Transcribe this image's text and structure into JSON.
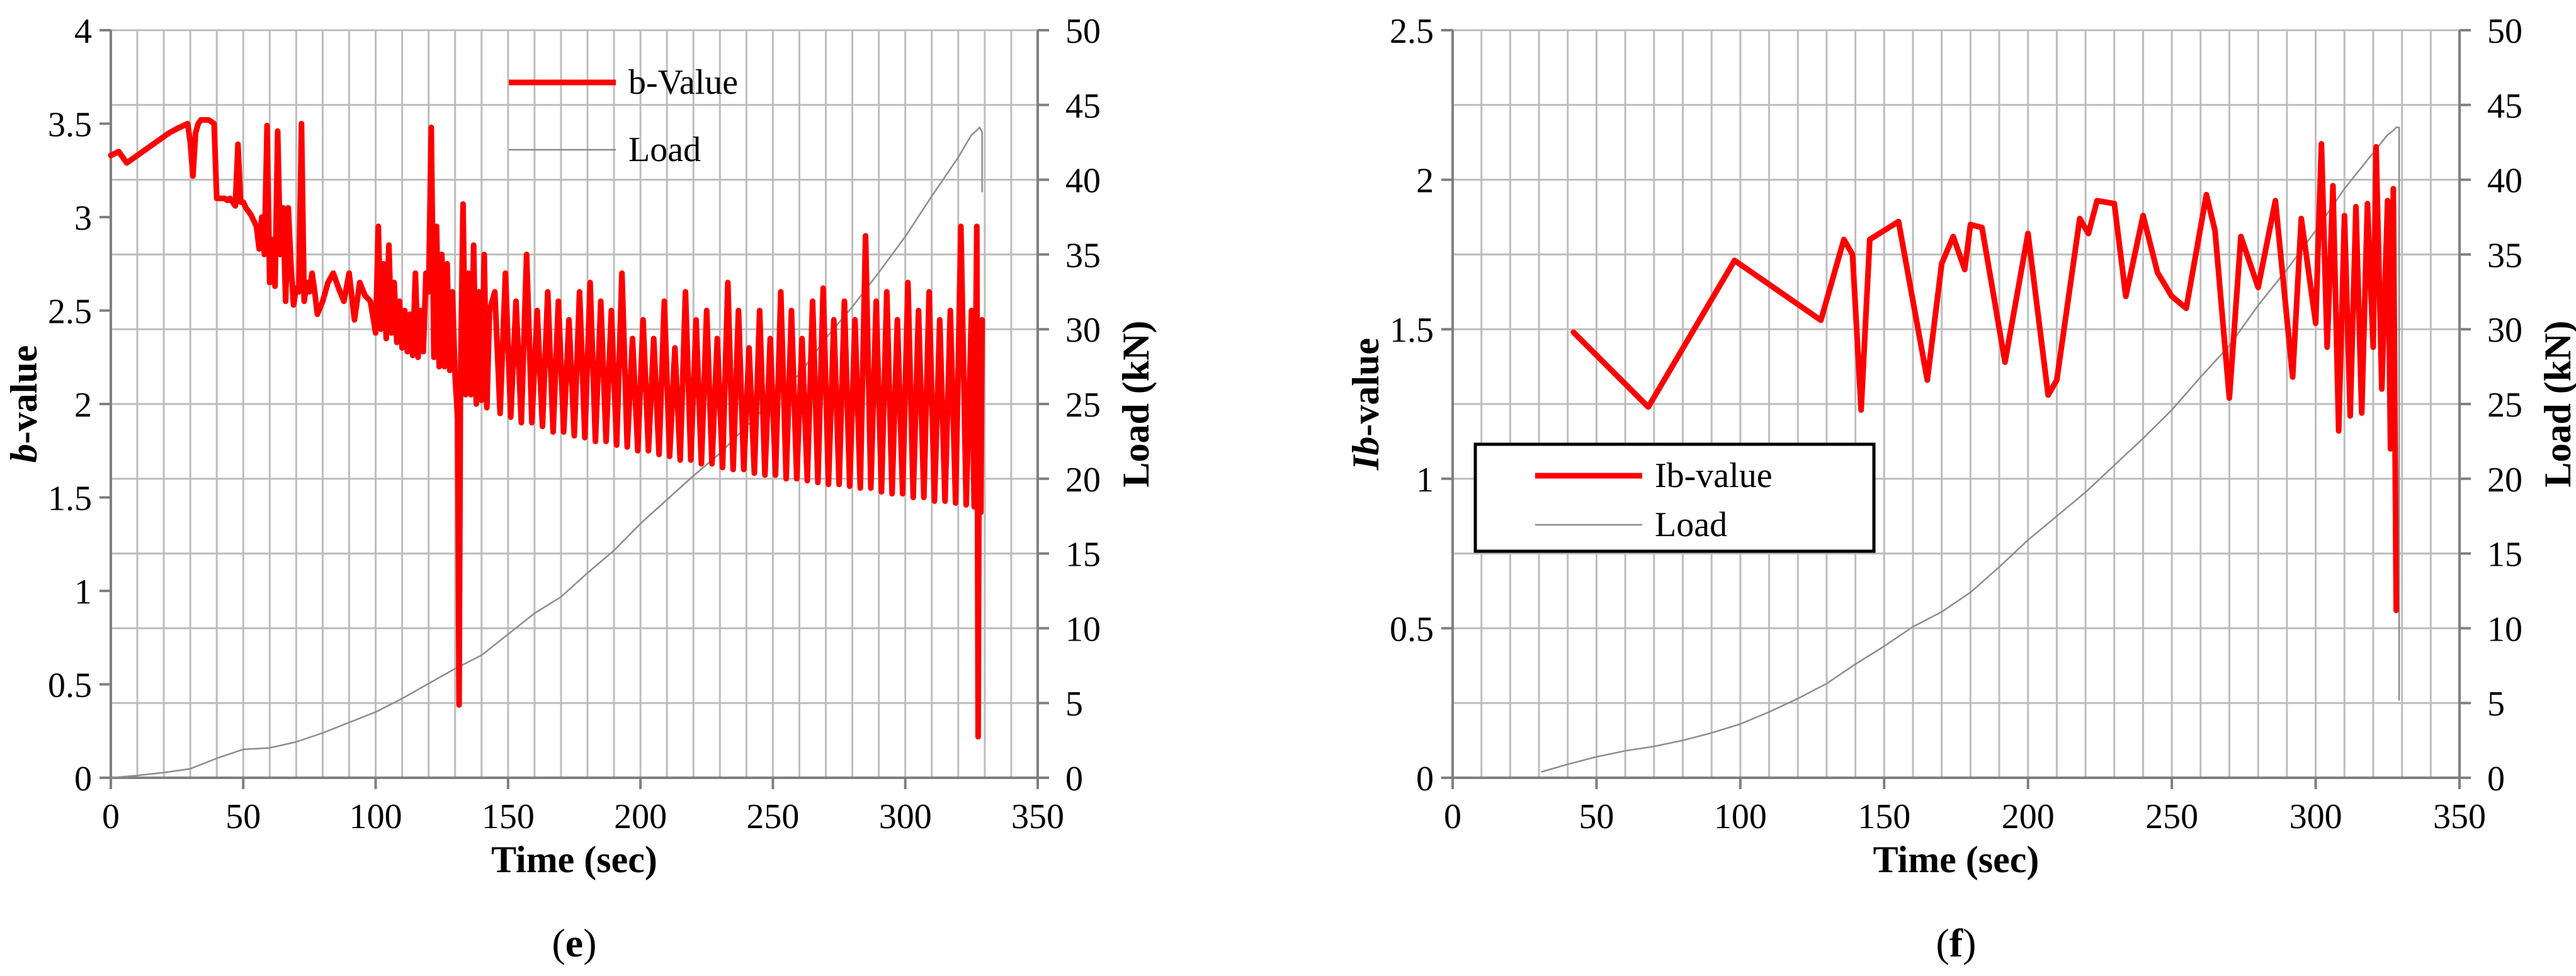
{
  "figure": {
    "colors": {
      "primary_series": "#ff0000",
      "load_series": "#8c8c8c",
      "grid": "#bdbdbd",
      "axis": "#808080"
    }
  },
  "chart_data": [
    {
      "type": "line",
      "caption_letter": "e",
      "xlabel": "Time (sec)",
      "ylabel_italic": "b",
      "ylabel_rest": "-value",
      "y2label": "Load (kN)",
      "xlim": [
        0,
        350
      ],
      "ylim": [
        0,
        4
      ],
      "y2lim": [
        0,
        50
      ],
      "xticks": [
        0,
        50,
        100,
        150,
        200,
        250,
        300,
        350
      ],
      "yticks": [
        "0",
        "0.5",
        "1",
        "1.5",
        "2",
        "2.5",
        "3",
        "3.5",
        "4"
      ],
      "y2ticks": [
        0,
        5,
        10,
        15,
        20,
        25,
        30,
        35,
        40,
        45,
        50
      ],
      "grid": true,
      "legend": {
        "position": "top-center",
        "boxed": false
      },
      "series": [
        {
          "name": "b-Value",
          "axis": "left",
          "color": "#ff0000",
          "style": "thick",
          "x": [
            0,
            3,
            6,
            10,
            14,
            18,
            22,
            26,
            29,
            30,
            31,
            32,
            33,
            34,
            35,
            37,
            39,
            40,
            41,
            42,
            43,
            44,
            45,
            47,
            48,
            49,
            50,
            51,
            53,
            55,
            56,
            57,
            58,
            59,
            60,
            61,
            62,
            63,
            64,
            65,
            66,
            67,
            68,
            69,
            70,
            71,
            72,
            73,
            74,
            75,
            76,
            77,
            78,
            80,
            82,
            84,
            86,
            88,
            90,
            92,
            94,
            96,
            98,
            100,
            101,
            102,
            103,
            104,
            105,
            106,
            107,
            108,
            109,
            110,
            111,
            112,
            113,
            114,
            115,
            116,
            117,
            118,
            119,
            120,
            121,
            122,
            123,
            124,
            125,
            126,
            127,
            128,
            129,
            130,
            131,
            131.5,
            132,
            133,
            134,
            135,
            136,
            137,
            138,
            139,
            140,
            141,
            142,
            143,
            145,
            147,
            149,
            151,
            153,
            155,
            157,
            159,
            161,
            163,
            165,
            167,
            169,
            171,
            173,
            175,
            177,
            179,
            181,
            183,
            185,
            187,
            189,
            191,
            193,
            195,
            197,
            199,
            201,
            203,
            205,
            207,
            209,
            211,
            213,
            215,
            217,
            219,
            221,
            223,
            225,
            227,
            229,
            231,
            233,
            235,
            237,
            239,
            241,
            243,
            245,
            247,
            249,
            251,
            253,
            255,
            257,
            259,
            261,
            263,
            265,
            267,
            269,
            271,
            273,
            275,
            277,
            279,
            281,
            283,
            285,
            287,
            289,
            291,
            293,
            295,
            297,
            299,
            301,
            303,
            305,
            307,
            309,
            311,
            313,
            315,
            317,
            319,
            321,
            323,
            325,
            326,
            327,
            327.5,
            328,
            328.5,
            329
          ],
          "y": [
            3.33,
            3.35,
            3.29,
            3.33,
            3.37,
            3.41,
            3.45,
            3.48,
            3.5,
            3.4,
            3.22,
            3.45,
            3.5,
            3.52,
            3.52,
            3.52,
            3.5,
            3.1,
            3.1,
            3.1,
            3.1,
            3.09,
            3.1,
            3.06,
            3.39,
            3.08,
            3.08,
            3.05,
            3.01,
            2.95,
            2.83,
            3.0,
            2.8,
            3.49,
            2.65,
            2.88,
            2.63,
            3.46,
            2.8,
            3.05,
            2.55,
            3.05,
            2.75,
            2.53,
            2.62,
            2.6,
            3.5,
            2.55,
            2.65,
            2.6,
            2.7,
            2.6,
            2.48,
            2.55,
            2.65,
            2.7,
            2.62,
            2.55,
            2.7,
            2.45,
            2.65,
            2.58,
            2.55,
            2.38,
            2.95,
            2.4,
            2.75,
            2.35,
            2.85,
            2.38,
            2.65,
            2.33,
            2.55,
            2.3,
            2.5,
            2.28,
            2.48,
            2.26,
            2.7,
            2.25,
            2.5,
            2.28,
            2.7,
            2.6,
            3.48,
            2.25,
            2.95,
            2.2,
            2.8,
            2.2,
            2.75,
            2.18,
            2.6,
            2.15,
            1.92,
            0.39,
            2.1,
            3.07,
            2.05,
            2.7,
            2.05,
            2.85,
            2.0,
            2.6,
            2.02,
            2.8,
            1.98,
            2.5,
            2.6,
            1.95,
            2.7,
            1.93,
            2.55,
            1.9,
            2.8,
            1.9,
            2.5,
            1.88,
            2.6,
            1.85,
            2.55,
            1.85,
            2.45,
            1.83,
            2.6,
            1.82,
            2.65,
            1.8,
            2.55,
            1.8,
            2.5,
            1.78,
            2.7,
            1.77,
            2.35,
            1.75,
            2.45,
            1.75,
            2.35,
            1.73,
            2.55,
            1.72,
            2.3,
            1.7,
            2.6,
            1.7,
            2.45,
            1.68,
            2.5,
            1.68,
            2.35,
            1.66,
            2.65,
            1.65,
            2.5,
            1.65,
            2.3,
            1.63,
            2.5,
            1.62,
            2.35,
            1.62,
            2.6,
            1.6,
            2.5,
            1.6,
            2.35,
            1.59,
            2.55,
            1.58,
            2.62,
            1.57,
            2.45,
            1.57,
            2.55,
            1.56,
            2.45,
            1.55,
            2.9,
            1.55,
            2.55,
            1.53,
            2.6,
            1.52,
            2.45,
            1.52,
            2.65,
            1.5,
            2.5,
            1.5,
            2.6,
            1.48,
            2.45,
            1.48,
            2.5,
            1.47,
            2.95,
            1.46,
            2.5,
            1.45,
            2.95,
            0.22,
            2.4,
            1.42,
            2.45
          ]
        },
        {
          "name": "Load",
          "axis": "right",
          "color": "#8c8c8c",
          "style": "thin",
          "x": [
            0,
            10,
            20,
            30,
            40,
            50,
            60,
            70,
            80,
            90,
            100,
            110,
            120,
            130,
            140,
            150,
            160,
            170,
            180,
            190,
            200,
            210,
            220,
            230,
            240,
            250,
            260,
            270,
            280,
            290,
            300,
            310,
            320,
            325,
            327,
            328,
            329,
            329
          ],
          "y": [
            0.0,
            0.15,
            0.35,
            0.6,
            1.3,
            1.9,
            2.0,
            2.4,
            3.0,
            3.7,
            4.4,
            5.3,
            6.3,
            7.3,
            8.2,
            9.6,
            11.0,
            12.1,
            13.7,
            15.2,
            17.0,
            18.6,
            20.2,
            21.7,
            23.5,
            25.3,
            27.0,
            29.4,
            31.5,
            33.8,
            36.2,
            38.9,
            41.5,
            43.0,
            43.3,
            43.5,
            43.2,
            39.2
          ]
        }
      ]
    },
    {
      "type": "line",
      "caption_letter": "f",
      "xlabel": "Time (sec)",
      "ylabel_italic": "Ib",
      "ylabel_rest": "-value",
      "y2label": "Load (kN)",
      "xlim": [
        0,
        350
      ],
      "ylim": [
        0,
        2.5
      ],
      "y2lim": [
        0,
        50
      ],
      "xticks": [
        0,
        50,
        100,
        150,
        200,
        250,
        300,
        350
      ],
      "yticks": [
        "0",
        "0.5",
        "1",
        "1.5",
        "2",
        "2.5"
      ],
      "y2ticks": [
        0,
        5,
        10,
        15,
        20,
        25,
        30,
        35,
        40,
        45,
        50
      ],
      "grid": true,
      "legend": {
        "position": "middle-left",
        "boxed": true
      },
      "series": [
        {
          "name": "Ib-value",
          "axis": "left",
          "color": "#ff0000",
          "style": "thick",
          "x": [
            42,
            68,
            98,
            128,
            136,
            139,
            142,
            145,
            155,
            165,
            170,
            174,
            178,
            180,
            184,
            192,
            200,
            207,
            210,
            218,
            221,
            224,
            230,
            234,
            240,
            245,
            250,
            255,
            262,
            265,
            270,
            274,
            280,
            286,
            292,
            295,
            300,
            302,
            304,
            306,
            308,
            310,
            312,
            314,
            316,
            318,
            320,
            321,
            323,
            325,
            326,
            327,
            328
          ],
          "y": [
            1.49,
            1.24,
            1.73,
            1.53,
            1.8,
            1.75,
            1.23,
            1.8,
            1.86,
            1.33,
            1.72,
            1.81,
            1.7,
            1.85,
            1.84,
            1.39,
            1.82,
            1.28,
            1.33,
            1.87,
            1.82,
            1.93,
            1.92,
            1.61,
            1.88,
            1.69,
            1.61,
            1.57,
            1.95,
            1.83,
            1.27,
            1.81,
            1.64,
            1.93,
            1.34,
            1.87,
            1.52,
            2.12,
            1.44,
            1.98,
            1.16,
            1.88,
            1.21,
            1.91,
            1.22,
            1.92,
            1.44,
            2.11,
            1.3,
            1.93,
            1.1,
            1.97,
            0.56
          ]
        },
        {
          "name": "Load",
          "axis": "right",
          "color": "#8c8c8c",
          "style": "thin",
          "x": [
            31,
            40,
            50,
            60,
            70,
            80,
            90,
            100,
            110,
            120,
            130,
            140,
            150,
            160,
            170,
            180,
            190,
            200,
            210,
            220,
            230,
            240,
            250,
            260,
            270,
            280,
            290,
            300,
            310,
            320,
            325,
            327,
            328,
            329,
            329
          ],
          "y": [
            0.4,
            0.9,
            1.4,
            1.8,
            2.1,
            2.5,
            3.0,
            3.6,
            4.4,
            5.3,
            6.3,
            7.6,
            8.8,
            10.1,
            11.1,
            12.4,
            14.1,
            15.9,
            17.5,
            19.1,
            20.9,
            22.7,
            24.6,
            26.8,
            28.9,
            31.6,
            34.0,
            36.6,
            39.4,
            41.8,
            43.0,
            43.3,
            43.5,
            43.5,
            5.2
          ]
        }
      ]
    }
  ]
}
